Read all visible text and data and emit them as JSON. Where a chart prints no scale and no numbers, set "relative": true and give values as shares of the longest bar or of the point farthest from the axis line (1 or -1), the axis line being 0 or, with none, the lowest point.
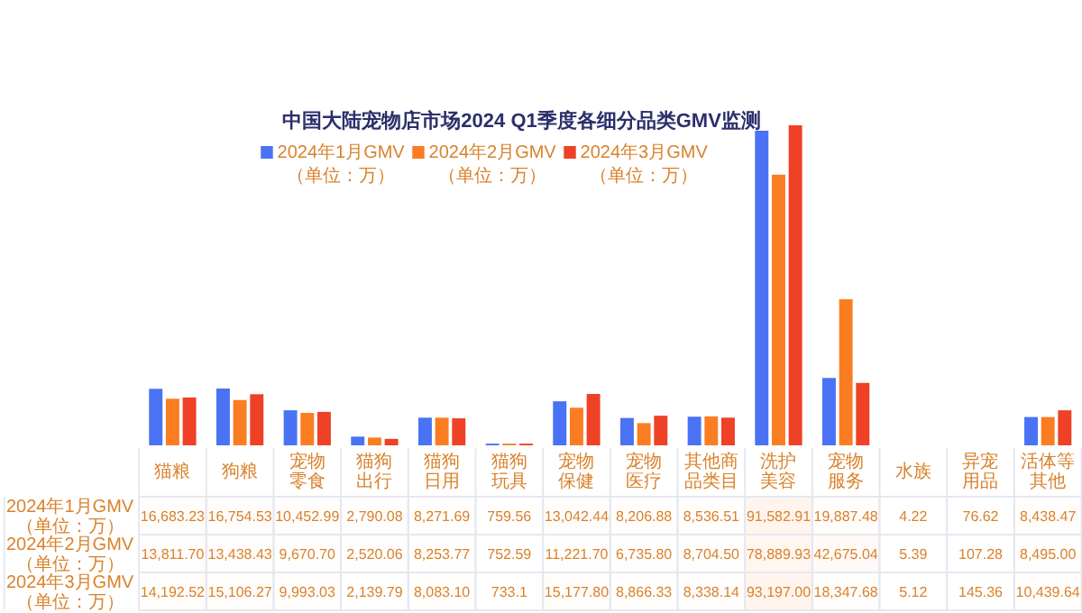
{
  "chart_data": [
    {
      "type": "bar",
      "title": "中国大陆宠物店市场2024 Q1季度各细分品类GMV监测",
      "categories": [
        "猫粮",
        "狗粮",
        "宠物零食",
        "猫狗出行",
        "猫狗日用",
        "猫狗玩具",
        "宠物保健",
        "宠物医疗",
        "其他商品类目",
        "洗护美容",
        "宠物服务",
        "水族",
        "异宠用品",
        "活体等其他"
      ],
      "series": [
        {
          "name": "2024年1月GMV\n（单位：万）",
          "color": "#4a72f5",
          "values": [
            0.179,
            0.18,
            0.112,
            0.03,
            0.089,
            0.008,
            0.14,
            0.088,
            0.092,
            0.983,
            0.213,
            0,
            null,
            0.091
          ]
        },
        {
          "name": "2024年2月GMV\n（单位：万）",
          "color": "#fb7d22",
          "values": [
            0.148,
            0.144,
            0.104,
            0.027,
            0.089,
            0.008,
            0.12,
            0.072,
            0.093,
            0.846,
            0.458,
            0,
            null,
            0.091
          ]
        },
        {
          "name": "2024年3月GMV\n（单位：万）",
          "color": "#ee4126",
          "values": [
            0.152,
            0.162,
            0.107,
            0.023,
            0.087,
            0.008,
            0.163,
            0.095,
            0.089,
            1,
            0.197,
            0,
            null,
            0.112
          ]
        }
      ],
      "relative": true,
      "tick_labels": false,
      "legend": "top",
      "grid": false
    },
    {
      "type": "heatmap",
      "categories": [
        "猫粮",
        "狗粮",
        "宠物零食",
        "猫狗出行",
        "猫狗日用",
        "猫狗玩具",
        "宠物保健",
        "宠物医疗",
        "其他商品类目",
        "洗护美容",
        "宠物服务",
        "水族",
        "异宠用品",
        "活体等其他"
      ],
      "y_categories": [
        "2024年1月GMV\n（单位：万）",
        "2024年2月GMV\n（单位：万）",
        "2024年3月GMV\n（单位：万）"
      ],
      "cells": [
        [
          16683.23,
          16754.53,
          10452.99,
          2790.08,
          8271.69,
          759.56,
          13042.44,
          8206.88,
          8536.51,
          91582.91,
          19887.48,
          4.22,
          76.62,
          8438.47
        ],
        [
          13811.7,
          13438.43,
          9670.7,
          2520.06,
          8253.77,
          752.59,
          11221.7,
          6735.8,
          8704.5,
          78889.93,
          42675.04,
          5.39,
          107.28,
          8495.0
        ],
        [
          14192.52,
          15106.27,
          9993.03,
          2139.79,
          8083.1,
          733.1,
          15177.8,
          8866.33,
          8338.14,
          93197.0,
          18347.68,
          5.12,
          145.36,
          10439.64
        ]
      ],
      "cell_labels": [
        [
          "16,683.23",
          "16,754.53",
          "10,452.99",
          "2,790.08",
          "8,271.69",
          "759.56",
          "13,042.44",
          "8,206.88",
          "8,536.51",
          "91,582.91",
          "19,887.48",
          "4.22",
          "76.62",
          "8,438.47"
        ],
        [
          "13,811.70",
          "13,438.43",
          "9,670.70",
          "2,520.06",
          "8,253.77",
          "752.59",
          "11,221.70",
          "6,735.80",
          "8,704.50",
          "78,889.93",
          "42,675.04",
          "5.39",
          "107.28",
          "8,495.00"
        ],
        [
          "14,192.52",
          "15,106.27",
          "9,993.03",
          "2,139.79",
          "8,083.10",
          "733.1",
          "15,177.80",
          "8,866.33",
          "8,338.14",
          "93,197.00",
          "18,347.68",
          "5.12",
          "145.36",
          "10,439.64"
        ]
      ]
    }
  ]
}
